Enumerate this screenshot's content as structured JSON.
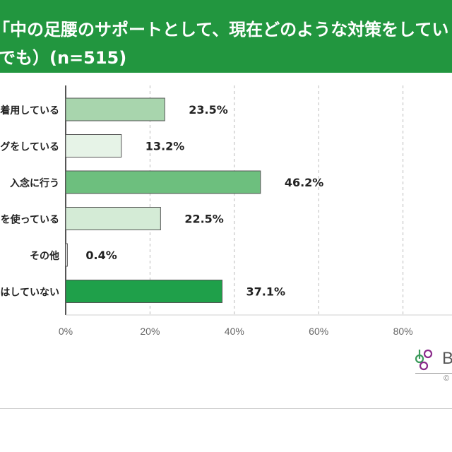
{
  "header": {
    "title_line1": "「中の足腰のサポートとして、現在どのような対策をしてい",
    "title_line2": "でも）(n=515)"
  },
  "chart_data": {
    "type": "bar",
    "orientation": "horizontal",
    "categories": [
      "着用している",
      "グをしている",
      "入念に行う",
      "を使っている",
      "その他",
      "はしていない"
    ],
    "values": [
      23.5,
      13.2,
      46.2,
      22.5,
      0.4,
      37.1
    ],
    "value_labels": [
      "23.5%",
      "13.2%",
      "46.2%",
      "22.5%",
      "0.4%",
      "37.1%"
    ],
    "bar_colors": [
      "#a8d5ad",
      "#e6f3e7",
      "#6dbf7e",
      "#d4ebd6",
      "#ffffff",
      "#1fa04a"
    ],
    "bar_outline": "#555555",
    "xlim": [
      0,
      70
    ],
    "x_ticks": [
      {
        "value": 0,
        "label": "0%"
      },
      {
        "value": 20,
        "label": "20%"
      },
      {
        "value": 40,
        "label": "40%"
      },
      {
        "value": 60,
        "label": "60%"
      },
      {
        "value": 80,
        "label": "80%"
      }
    ],
    "grid": "vertical-dashed",
    "legend": "none"
  },
  "colors": {
    "title_band": "#22963f",
    "axis": "#555555",
    "grid": "#bbbbbb",
    "logo_green": "#3a9a5a",
    "logo_purple": "#8a2a8a"
  },
  "logo": {
    "letter": "B",
    "copyright_symbol": "©"
  }
}
